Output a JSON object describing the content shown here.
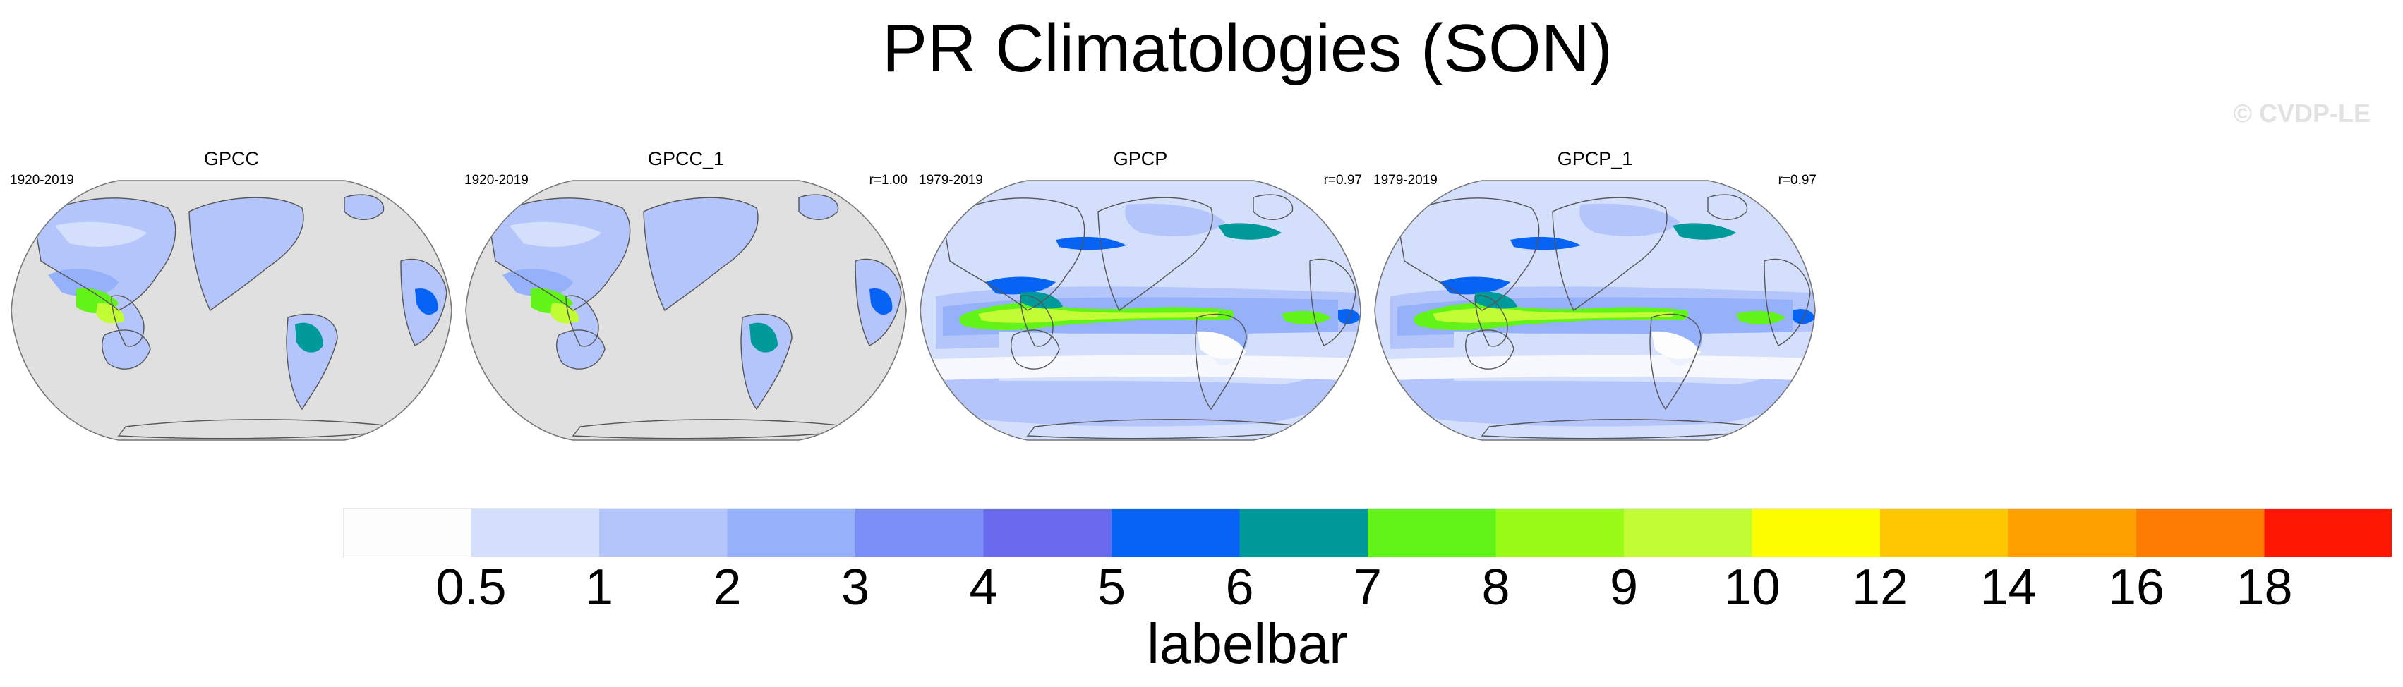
{
  "title": "PR Climatologies (SON)",
  "credit": "© CVDP-LE",
  "panels": [
    {
      "name": "GPCC",
      "years": "1920-2019",
      "r": "",
      "type": "land"
    },
    {
      "name": "GPCC_1",
      "years": "1920-2019",
      "r": "r=1.00",
      "type": "land"
    },
    {
      "name": "GPCP",
      "years": "1979-2019",
      "r": "r=0.97",
      "type": "global"
    },
    {
      "name": "GPCP_1",
      "years": "1979-2019",
      "r": "r=0.97",
      "type": "global"
    }
  ],
  "colors": {
    "missing": "#e0e0e0",
    "levels": [
      "#fdfdfd",
      "#d4dffc",
      "#b3c5fb",
      "#94b1fa",
      "#7b8ef5",
      "#6a6aef",
      "#0663f4",
      "#019a9a",
      "#62f319",
      "#9afc16",
      "#c2fc34",
      "#fefe00",
      "#fec600",
      "#ffa000",
      "#fd7c00",
      "#fd1700"
    ]
  },
  "labelbar": {
    "title": "labelbar",
    "ticks": [
      "0.5",
      "1",
      "2",
      "3",
      "4",
      "5",
      "6",
      "7",
      "8",
      "9",
      "10",
      "12",
      "14",
      "16",
      "18"
    ]
  }
}
